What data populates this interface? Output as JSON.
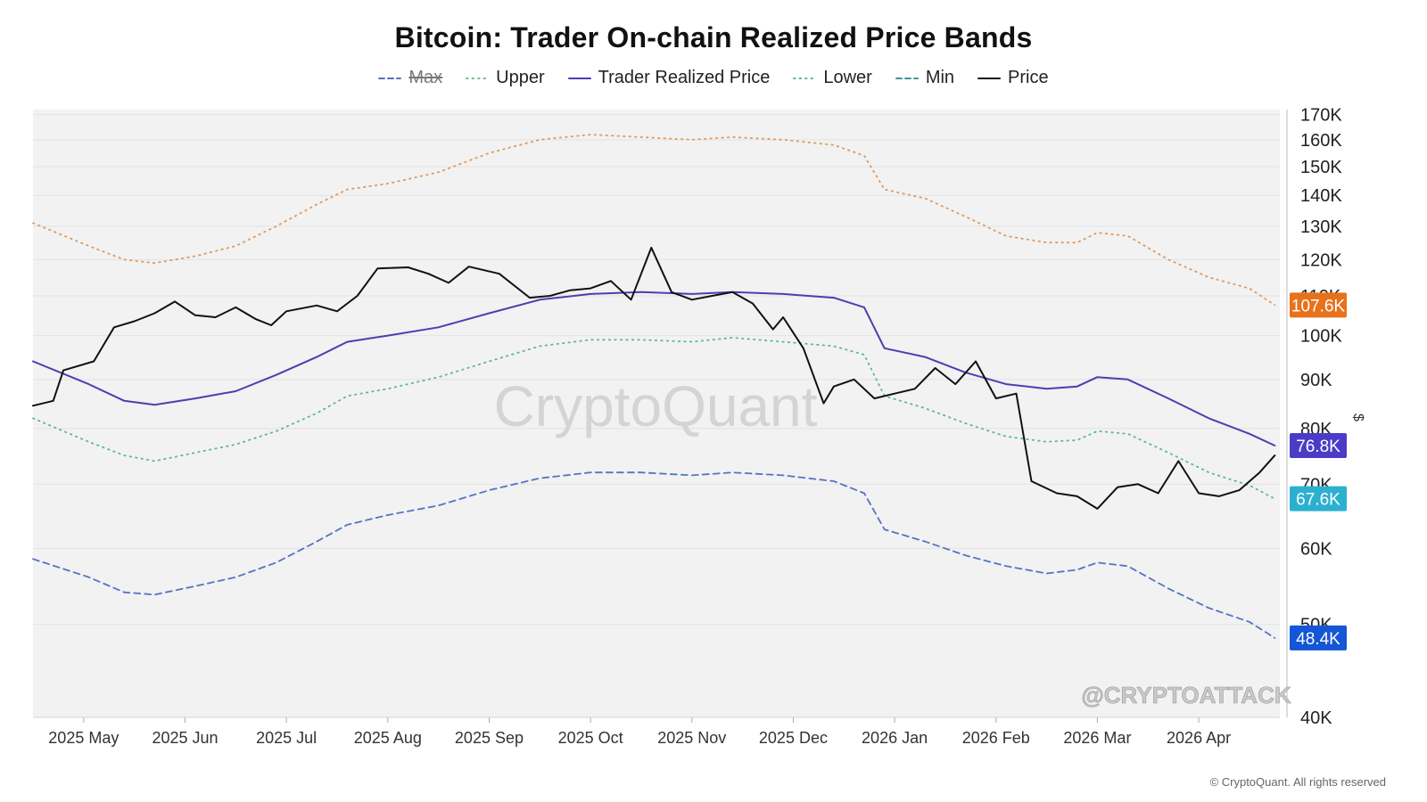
{
  "title": "Bitcoin: Trader On-chain Realized Price Bands",
  "legend": [
    {
      "key": "max",
      "label": "Max",
      "color": "#5b6fbf",
      "dash": "dashed",
      "hidden": true
    },
    {
      "key": "upper",
      "label": "Upper",
      "color": "#6dbf8a",
      "dash": "dotted",
      "hidden": false
    },
    {
      "key": "trp",
      "label": "Trader Realized Price",
      "color": "#4a3fb0",
      "dash": "solid",
      "hidden": false
    },
    {
      "key": "lower",
      "label": "Lower",
      "color": "#5fb59a",
      "dash": "dotted",
      "hidden": false
    },
    {
      "key": "min",
      "label": "Min",
      "color": "#4a8f9f",
      "dash": "dashed",
      "hidden": false
    },
    {
      "key": "price",
      "label": "Price",
      "color": "#111111",
      "dash": "solid",
      "hidden": false
    }
  ],
  "y_axis_unit": "$",
  "watermark": "CryptoQuant",
  "handle": "@CRYPTOATTACK",
  "copyright": "© CryptoQuant. All rights reserved",
  "chart_data": {
    "type": "line",
    "y_scale": "log",
    "ylim": [
      40000,
      172000
    ],
    "y_ticks": [
      {
        "v": 170000,
        "label": "170K"
      },
      {
        "v": 160000,
        "label": "160K"
      },
      {
        "v": 150000,
        "label": "150K"
      },
      {
        "v": 140000,
        "label": "140K"
      },
      {
        "v": 130000,
        "label": "130K"
      },
      {
        "v": 120000,
        "label": "120K"
      },
      {
        "v": 110000,
        "label": "110K"
      },
      {
        "v": 100000,
        "label": "100K"
      },
      {
        "v": 90000,
        "label": "90K"
      },
      {
        "v": 80000,
        "label": "80K"
      },
      {
        "v": 70000,
        "label": "70K"
      },
      {
        "v": 60000,
        "label": "60K"
      },
      {
        "v": 50000,
        "label": "50K"
      },
      {
        "v": 40000,
        "label": "40K"
      }
    ],
    "x_ticks": [
      {
        "t": 0.5,
        "label": "2025 May"
      },
      {
        "t": 1.5,
        "label": "2025 Jun"
      },
      {
        "t": 2.5,
        "label": "2025 Jul"
      },
      {
        "t": 3.5,
        "label": "2025 Aug"
      },
      {
        "t": 4.5,
        "label": "2025 Sep"
      },
      {
        "t": 5.5,
        "label": "2025 Oct"
      },
      {
        "t": 6.5,
        "label": "2025 Nov"
      },
      {
        "t": 7.5,
        "label": "2025 Dec"
      },
      {
        "t": 8.5,
        "label": "2026 Jan"
      },
      {
        "t": 9.5,
        "label": "2026 Feb"
      },
      {
        "t": 10.5,
        "label": "2026 Mar"
      },
      {
        "t": 11.5,
        "label": "2026 Apr"
      }
    ],
    "xlim": [
      0,
      12.3
    ],
    "end_labels": [
      {
        "series": "upper",
        "value": 107600,
        "label": "107.6K",
        "bg": "#e8711c"
      },
      {
        "series": "trp",
        "value": 76800,
        "label": "76.8K",
        "bg": "#4b3cc8"
      },
      {
        "series": "lower",
        "value": 67600,
        "label": "67.6K",
        "bg": "#2cb0d0"
      },
      {
        "series": "min",
        "value": 48400,
        "label": "48.4K",
        "bg": "#1456d6"
      }
    ],
    "series": [
      {
        "name": "Upper",
        "key": "upper",
        "points": [
          [
            0,
            131000
          ],
          [
            0.55,
            124000
          ],
          [
            0.9,
            120000
          ],
          [
            1.2,
            119000
          ],
          [
            1.6,
            121000
          ],
          [
            2.0,
            124000
          ],
          [
            2.4,
            130000
          ],
          [
            2.8,
            137000
          ],
          [
            3.1,
            142000
          ],
          [
            3.5,
            144000
          ],
          [
            4.0,
            148000
          ],
          [
            4.5,
            155000
          ],
          [
            5.0,
            160000
          ],
          [
            5.5,
            162000
          ],
          [
            6.0,
            161000
          ],
          [
            6.5,
            160000
          ],
          [
            6.9,
            161000
          ],
          [
            7.4,
            160000
          ],
          [
            7.9,
            158000
          ],
          [
            8.2,
            154000
          ],
          [
            8.4,
            142000
          ],
          [
            8.8,
            139000
          ],
          [
            9.2,
            133000
          ],
          [
            9.6,
            127000
          ],
          [
            10.0,
            125000
          ],
          [
            10.3,
            125000
          ],
          [
            10.5,
            128000
          ],
          [
            10.8,
            127000
          ],
          [
            11.2,
            120000
          ],
          [
            11.6,
            115000
          ],
          [
            12.0,
            112000
          ],
          [
            12.25,
            107600
          ]
        ]
      },
      {
        "name": "Trader Realized Price",
        "key": "trp",
        "points": [
          [
            0,
            94000
          ],
          [
            0.55,
            89000
          ],
          [
            0.9,
            85500
          ],
          [
            1.2,
            84700
          ],
          [
            1.6,
            86000
          ],
          [
            2.0,
            87500
          ],
          [
            2.4,
            91000
          ],
          [
            2.8,
            95000
          ],
          [
            3.1,
            98500
          ],
          [
            3.5,
            100000
          ],
          [
            4.0,
            102000
          ],
          [
            4.5,
            105500
          ],
          [
            5.0,
            109000
          ],
          [
            5.5,
            110500
          ],
          [
            6.0,
            111000
          ],
          [
            6.5,
            110500
          ],
          [
            6.9,
            111000
          ],
          [
            7.4,
            110500
          ],
          [
            7.9,
            109500
          ],
          [
            8.2,
            107000
          ],
          [
            8.4,
            97000
          ],
          [
            8.8,
            95000
          ],
          [
            9.2,
            91500
          ],
          [
            9.6,
            89000
          ],
          [
            10.0,
            88000
          ],
          [
            10.3,
            88500
          ],
          [
            10.5,
            90500
          ],
          [
            10.8,
            90000
          ],
          [
            11.2,
            86000
          ],
          [
            11.6,
            82000
          ],
          [
            12.0,
            79000
          ],
          [
            12.25,
            76800
          ]
        ]
      },
      {
        "name": "Lower",
        "key": "lower",
        "points": [
          [
            0,
            82000
          ],
          [
            0.55,
            77500
          ],
          [
            0.9,
            75000
          ],
          [
            1.2,
            74000
          ],
          [
            1.6,
            75500
          ],
          [
            2.0,
            77000
          ],
          [
            2.4,
            79500
          ],
          [
            2.8,
            83000
          ],
          [
            3.1,
            86500
          ],
          [
            3.5,
            88000
          ],
          [
            4.0,
            90500
          ],
          [
            4.5,
            94000
          ],
          [
            5.0,
            97500
          ],
          [
            5.5,
            99000
          ],
          [
            6.0,
            99000
          ],
          [
            6.5,
            98500
          ],
          [
            6.9,
            99500
          ],
          [
            7.4,
            98500
          ],
          [
            7.9,
            97500
          ],
          [
            8.2,
            95500
          ],
          [
            8.4,
            86500
          ],
          [
            8.8,
            84000
          ],
          [
            9.2,
            81000
          ],
          [
            9.6,
            78500
          ],
          [
            10.0,
            77500
          ],
          [
            10.3,
            77800
          ],
          [
            10.5,
            79500
          ],
          [
            10.8,
            79000
          ],
          [
            11.2,
            75500
          ],
          [
            11.6,
            72000
          ],
          [
            12.0,
            69800
          ],
          [
            12.25,
            67600
          ]
        ]
      },
      {
        "name": "Min",
        "key": "min",
        "points": [
          [
            0,
            58500
          ],
          [
            0.55,
            56000
          ],
          [
            0.9,
            54000
          ],
          [
            1.2,
            53700
          ],
          [
            1.6,
            54800
          ],
          [
            2.0,
            56000
          ],
          [
            2.4,
            58000
          ],
          [
            2.8,
            61000
          ],
          [
            3.1,
            63500
          ],
          [
            3.5,
            65000
          ],
          [
            4.0,
            66500
          ],
          [
            4.5,
            69000
          ],
          [
            5.0,
            71000
          ],
          [
            5.5,
            72000
          ],
          [
            6.0,
            72000
          ],
          [
            6.5,
            71500
          ],
          [
            6.9,
            72000
          ],
          [
            7.4,
            71500
          ],
          [
            7.9,
            70500
          ],
          [
            8.2,
            68500
          ],
          [
            8.4,
            62800
          ],
          [
            8.8,
            61000
          ],
          [
            9.2,
            59000
          ],
          [
            9.6,
            57500
          ],
          [
            10.0,
            56500
          ],
          [
            10.3,
            57000
          ],
          [
            10.5,
            58000
          ],
          [
            10.8,
            57500
          ],
          [
            11.2,
            54500
          ],
          [
            11.6,
            52000
          ],
          [
            12.0,
            50300
          ],
          [
            12.25,
            48400
          ]
        ]
      },
      {
        "name": "Price",
        "key": "price",
        "points": [
          [
            0,
            84500
          ],
          [
            0.2,
            85500
          ],
          [
            0.3,
            92000
          ],
          [
            0.6,
            94000
          ],
          [
            0.8,
            102000
          ],
          [
            1.0,
            103500
          ],
          [
            1.2,
            105500
          ],
          [
            1.4,
            108500
          ],
          [
            1.6,
            105000
          ],
          [
            1.8,
            104500
          ],
          [
            2.0,
            107000
          ],
          [
            2.2,
            104000
          ],
          [
            2.35,
            102500
          ],
          [
            2.5,
            106000
          ],
          [
            2.8,
            107500
          ],
          [
            3.0,
            106000
          ],
          [
            3.2,
            110000
          ],
          [
            3.4,
            117500
          ],
          [
            3.7,
            117800
          ],
          [
            3.9,
            116000
          ],
          [
            4.1,
            113500
          ],
          [
            4.3,
            118000
          ],
          [
            4.6,
            116000
          ],
          [
            4.9,
            109500
          ],
          [
            5.1,
            110000
          ],
          [
            5.3,
            111500
          ],
          [
            5.5,
            112000
          ],
          [
            5.7,
            114000
          ],
          [
            5.9,
            109000
          ],
          [
            6.1,
            123500
          ],
          [
            6.3,
            111000
          ],
          [
            6.5,
            109000
          ],
          [
            6.7,
            110000
          ],
          [
            6.9,
            111000
          ],
          [
            7.1,
            108000
          ],
          [
            7.3,
            101500
          ],
          [
            7.4,
            104500
          ],
          [
            7.6,
            97000
          ],
          [
            7.8,
            85000
          ],
          [
            7.9,
            88500
          ],
          [
            8.1,
            90000
          ],
          [
            8.3,
            86000
          ],
          [
            8.5,
            87000
          ],
          [
            8.7,
            88000
          ],
          [
            8.9,
            92500
          ],
          [
            9.1,
            89000
          ],
          [
            9.3,
            94000
          ],
          [
            9.5,
            86000
          ],
          [
            9.7,
            87000
          ],
          [
            9.85,
            70500
          ],
          [
            10.1,
            68500
          ],
          [
            10.3,
            68000
          ],
          [
            10.5,
            66000
          ],
          [
            10.7,
            69500
          ],
          [
            10.9,
            70000
          ],
          [
            11.1,
            68500
          ],
          [
            11.3,
            74000
          ],
          [
            11.5,
            68500
          ],
          [
            11.7,
            68000
          ],
          [
            11.9,
            69000
          ],
          [
            12.1,
            72000
          ],
          [
            12.25,
            75000
          ]
        ]
      }
    ]
  }
}
